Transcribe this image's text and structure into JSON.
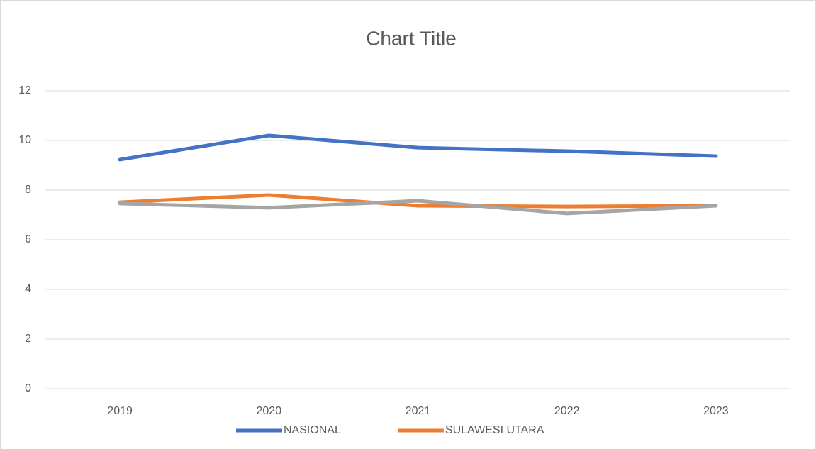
{
  "chart_data": {
    "type": "line",
    "title": "Chart Title",
    "categories": [
      "2019",
      "2020",
      "2021",
      "2022",
      "2023"
    ],
    "series": [
      {
        "name": "NASIONAL",
        "color": "#4472c4",
        "values": [
          9.23,
          10.2,
          9.71,
          9.57,
          9.37
        ]
      },
      {
        "name": "SULAWESI UTARA",
        "color": "#ed7d31",
        "values": [
          7.51,
          7.8,
          7.37,
          7.34,
          7.37
        ]
      },
      {
        "color": "#a5a5a5",
        "values": [
          7.46,
          7.29,
          7.57,
          7.06,
          7.37
        ]
      }
    ],
    "ylim": [
      0,
      12
    ],
    "yticks": [
      0,
      2,
      4,
      6,
      8,
      10,
      12
    ],
    "grid": true,
    "legend": "bottom"
  }
}
